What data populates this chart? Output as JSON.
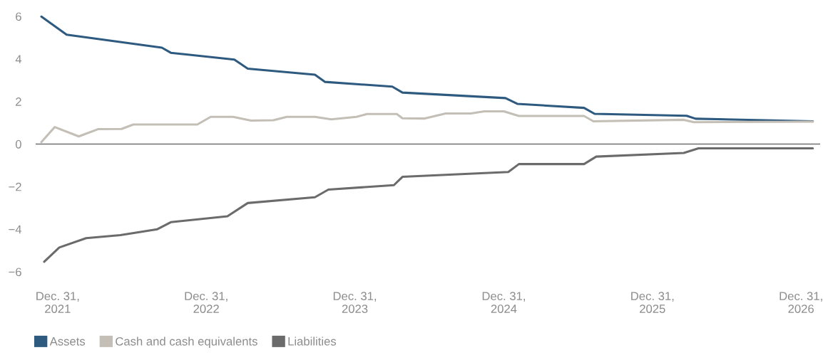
{
  "chart_data": {
    "type": "line",
    "xlim": [
      "2021-11-07",
      "2027-02-16"
    ],
    "ylim": [
      -6,
      6
    ],
    "xticks": [
      {
        "value": "2021-12-31",
        "label": "Dec. 31,\n2021"
      },
      {
        "value": "2022-12-31",
        "label": "Dec. 31,\n2022"
      },
      {
        "value": "2023-12-31",
        "label": "Dec. 31,\n2023"
      },
      {
        "value": "2024-12-31",
        "label": "Dec. 31,\n2024"
      },
      {
        "value": "2025-12-31",
        "label": "Dec. 31,\n2025"
      },
      {
        "value": "2026-12-31",
        "label": "Dec. 31,\n2026"
      }
    ],
    "yticks": [
      {
        "value": -6,
        "label": "−6"
      },
      {
        "value": -4,
        "label": "−4"
      },
      {
        "value": -2,
        "label": "−2"
      },
      0,
      2,
      4,
      6
    ],
    "legend": "bottom left",
    "ref_lines": [
      {
        "axis": "y",
        "value": 0,
        "color": "#707070"
      }
    ],
    "series": [
      {
        "name": "Assets",
        "color": "#2e5a80",
        "x": [
          "2021-11-21",
          "2022-01-22",
          "2022-09-13",
          "2022-10-05",
          "2023-03-10",
          "2023-04-12",
          "2023-09-24",
          "2023-10-19",
          "2024-04-01",
          "2024-04-26",
          "2025-01-04",
          "2025-02-02",
          "2025-07-16",
          "2025-08-11",
          "2026-03-25",
          "2026-04-16",
          "2027-01-29"
        ],
        "values": [
          5.99,
          5.14,
          4.53,
          4.29,
          3.97,
          3.54,
          3.26,
          2.92,
          2.7,
          2.42,
          2.16,
          1.89,
          1.7,
          1.42,
          1.33,
          1.19,
          1.07
        ]
      },
      {
        "name": "Cash and cash equivalents",
        "color": "#c4bfb6",
        "x": [
          "2021-11-21",
          "2021-12-24",
          "2022-02-21",
          "2022-04-09",
          "2022-06-06",
          "2022-07-05",
          "2022-12-09",
          "2023-01-11",
          "2023-03-07",
          "2023-04-20",
          "2023-06-14",
          "2023-07-17",
          "2023-09-24",
          "2023-11-03",
          "2024-01-04",
          "2024-01-30",
          "2024-04-12",
          "2024-04-26",
          "2024-06-20",
          "2024-08-10",
          "2024-10-11",
          "2024-11-13",
          "2024-12-31",
          "2025-02-06",
          "2025-07-16",
          "2025-08-08",
          "2026-03-18",
          "2026-04-12",
          "2027-01-29"
        ],
        "values": [
          0.09,
          0.8,
          0.36,
          0.7,
          0.71,
          0.92,
          0.92,
          1.28,
          1.28,
          1.1,
          1.12,
          1.28,
          1.28,
          1.16,
          1.28,
          1.41,
          1.41,
          1.21,
          1.2,
          1.44,
          1.44,
          1.54,
          1.54,
          1.32,
          1.32,
          1.07,
          1.14,
          1.03,
          1.05
        ]
      },
      {
        "name": "Liabilities",
        "color": "#6b6b6b",
        "x": [
          "2021-11-28",
          "2022-01-04",
          "2022-03-11",
          "2022-06-03",
          "2022-09-02",
          "2022-10-05",
          "2023-02-21",
          "2023-04-12",
          "2023-09-24",
          "2023-10-27",
          "2024-04-05",
          "2024-04-26",
          "2025-01-11",
          "2025-02-06",
          "2025-07-16",
          "2025-08-15",
          "2026-03-18",
          "2026-04-23",
          "2027-01-29"
        ],
        "values": [
          -5.53,
          -4.86,
          -4.42,
          -4.28,
          -4.0,
          -3.67,
          -3.39,
          -2.77,
          -2.5,
          -2.14,
          -1.93,
          -1.54,
          -1.31,
          -0.94,
          -0.94,
          -0.59,
          -0.42,
          -0.2,
          -0.2
        ]
      }
    ]
  }
}
